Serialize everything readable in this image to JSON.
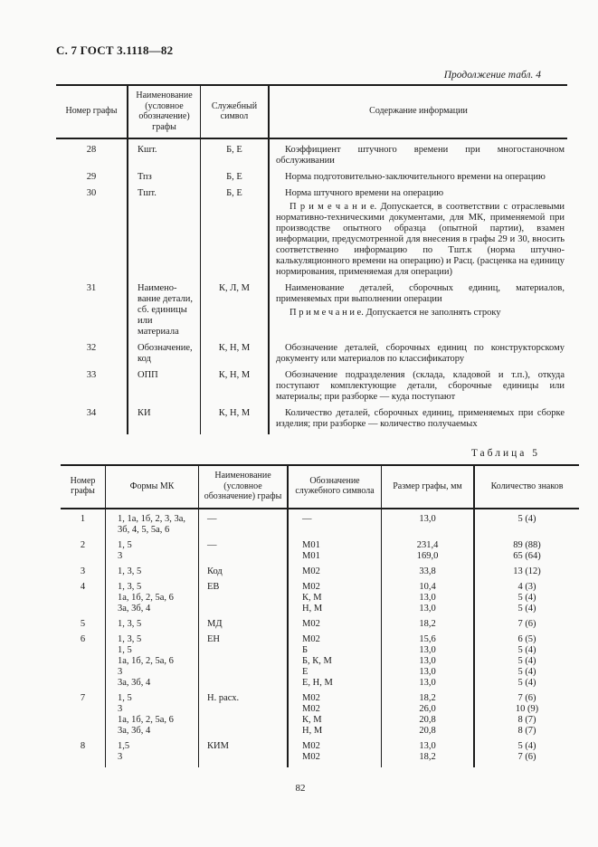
{
  "page": {
    "doc_header": "С. 7 ГОСТ 3.1118—82",
    "table4_caption": "Продолжение табл. 4",
    "table5_caption": "Таблица 5",
    "page_number": "82"
  },
  "colors": {
    "ink": "#1c1c1c",
    "paper": "#fafaf9"
  },
  "table4": {
    "headers": {
      "num": "Номер графы",
      "name": "Наименование (условное обозначение) графы",
      "symbol": "Служебный символ",
      "content": "Содержание информации"
    },
    "rows": [
      {
        "num": "28",
        "name": "Кшт.",
        "symbol": "Б, Е",
        "content": "Коэффициент штучного времени при многостаночном обслуживании"
      },
      {
        "num": "29",
        "name": "Тпз",
        "symbol": "Б, Е",
        "content": "Норма подготовительно-заключительного времени на операцию"
      },
      {
        "num": "30",
        "name": "Тшт.",
        "symbol": "Б, Е",
        "content": "Норма штучного времени на операцию",
        "note": "П р и м е ч а н и е.  Допускается, в соответствии с отраслевыми нормативно-техническими документами, для МК, применяемой при производстве опытного образца (опытной партии), взамен информации, предусмотренной для внесения в графы 29 и 30, вносить соответственно информацию по Тшт.к (норма штучно-калькуляционного времени на операцию) и Расц. (расценка на единицу нормирования, применяемая для операции)"
      },
      {
        "num": "31",
        "name": "Наимено­вание дета­ли, сб. еди­ницы или материала",
        "symbol": "К, Л, М",
        "content": "Наименование деталей, сборочных единиц, материалов, применяемых при выполнении операции",
        "note": "П р и м е ч а н и е.  Допускается не заполнять строку"
      },
      {
        "num": "32",
        "name": "Обозначе­ние, код",
        "symbol": "К, Н, М",
        "content": "Обозначение деталей, сборочных единиц по конструкторскому документу или материалов по классификатору"
      },
      {
        "num": "33",
        "name": "ОПП",
        "symbol": "К, Н, М",
        "content": "Обозначение подразделения (склада, кладовой и т.п.), откуда поступают комплектующие детали, сборочные единицы или материалы; при разборке — куда поступают"
      },
      {
        "num": "34",
        "name": "КИ",
        "symbol": "К, Н, М",
        "content": "Количество деталей, сборочных единиц, применяемых при сборке изделия; при разборке — количество получаемых"
      }
    ]
  },
  "table5": {
    "headers": {
      "num": "Номер графы",
      "forms": "Формы МК",
      "name": "Наименование (условное обозначение) графы",
      "symbol": "Обозначение служебного символа",
      "size": "Размер графы, мм",
      "chars": "Количество знаков"
    },
    "rows": [
      {
        "num": "1",
        "name": "—",
        "lines": [
          {
            "forms": "1, 1а, 1б, 2, 3, 3а,",
            "symbol": "—",
            "size": "13,0",
            "chars": "5  (4)"
          },
          {
            "forms": "3б, 4, 5, 5а, 6"
          }
        ]
      },
      {
        "num": "2",
        "name": "—",
        "lines": [
          {
            "forms": "1, 5",
            "symbol": "М01",
            "size": "231,4",
            "chars": "89  (88)"
          },
          {
            "forms": "3",
            "symbol": "М01",
            "size": "169,0",
            "chars": "65  (64)"
          }
        ]
      },
      {
        "num": "3",
        "name": "Код",
        "lines": [
          {
            "forms": "1, 3, 5",
            "symbol": "М02",
            "size": "33,8",
            "chars": "13  (12)"
          }
        ]
      },
      {
        "num": "4",
        "name": "ЕВ",
        "lines": [
          {
            "forms": "1, 3, 5",
            "symbol": "М02",
            "size": "10,4",
            "chars": "4  (3)"
          },
          {
            "forms": "1а, 1б, 2, 5а, 6",
            "symbol": "К, М",
            "size": "13,0",
            "chars": "5  (4)"
          },
          {
            "forms": "3а, 3б, 4",
            "symbol": "Н, М",
            "size": "13,0",
            "chars": "5  (4)"
          }
        ]
      },
      {
        "num": "5",
        "name": "МД",
        "lines": [
          {
            "forms": "1, 3, 5",
            "symbol": "М02",
            "size": "18,2",
            "chars": "7  (6)"
          }
        ]
      },
      {
        "num": "6",
        "name": "ЕН",
        "lines": [
          {
            "forms": "1, 3, 5",
            "symbol": "М02",
            "size": "15,6",
            "chars": "6  (5)"
          },
          {
            "forms": "1, 5",
            "symbol": "Б",
            "size": "13,0",
            "chars": "5  (4)"
          },
          {
            "forms": "1а, 1б, 2, 5а, 6",
            "symbol": "Б, К, М",
            "size": "13,0",
            "chars": "5  (4)"
          },
          {
            "forms": "3",
            "symbol": "Е",
            "size": "13,0",
            "chars": "5  (4)"
          },
          {
            "forms": "3а, 3б, 4",
            "symbol": "Е, Н, М",
            "size": "13,0",
            "chars": "5  (4)"
          }
        ]
      },
      {
        "num": "7",
        "name": "Н. расх.",
        "lines": [
          {
            "forms": "1, 5",
            "symbol": "М02",
            "size": "18,2",
            "chars": "7  (6)"
          },
          {
            "forms": "3",
            "symbol": "М02",
            "size": "26,0",
            "chars": "10  (9)"
          },
          {
            "forms": "1а, 1б, 2, 5а, 6",
            "symbol": "К, М",
            "size": "20,8",
            "chars": "8  (7)"
          },
          {
            "forms": "3а, 3б, 4",
            "symbol": "Н, М",
            "size": "20,8",
            "chars": "8  (7)"
          }
        ]
      },
      {
        "num": "8",
        "name": "КИМ",
        "lines": [
          {
            "forms": "1,5",
            "symbol": "М02",
            "size": "13,0",
            "chars": "5  (4)"
          },
          {
            "forms": "3",
            "symbol": "М02",
            "size": "18,2",
            "chars": "7  (6)"
          }
        ]
      }
    ]
  }
}
